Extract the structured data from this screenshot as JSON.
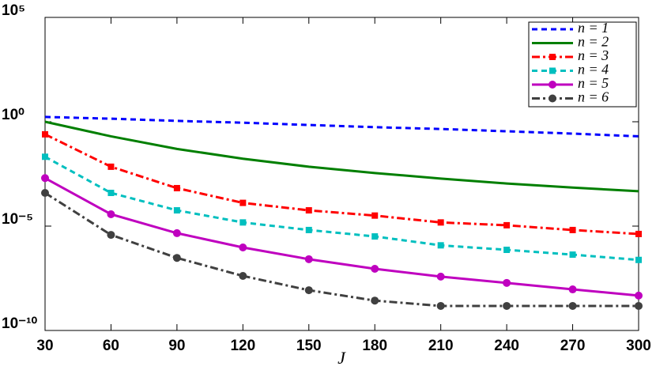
{
  "chart_data": {
    "type": "line",
    "x_label": "J",
    "x": [
      30,
      60,
      90,
      120,
      150,
      180,
      210,
      240,
      270,
      300
    ],
    "xlim": [
      30,
      300
    ],
    "xticks": [
      30,
      60,
      90,
      120,
      150,
      180,
      210,
      240,
      270,
      300
    ],
    "ylim": [
      1e-10,
      100000
    ],
    "y_scale": "log",
    "yticks": [
      {
        "value": 1e-10,
        "label": "10⁻¹⁰"
      },
      {
        "value": 1e-05,
        "label": "10⁻⁵"
      },
      {
        "value": 1,
        "label": "10⁰"
      },
      {
        "value": 100000,
        "label": "10⁵"
      }
    ],
    "grid": false,
    "legend": "upper right",
    "series": [
      {
        "name": "n = 1",
        "color": "#0000ff",
        "dash": "dashed",
        "marker": "none",
        "values": [
          1.7,
          1.4,
          1.1,
          0.9,
          0.7,
          0.55,
          0.45,
          0.35,
          0.27,
          0.2
        ]
      },
      {
        "name": "n = 2",
        "color": "#007f00",
        "dash": "solid",
        "marker": "none",
        "values": [
          1,
          0.2,
          0.05,
          0.017,
          0.007,
          0.0035,
          0.0019,
          0.0011,
          0.0007,
          0.00047
        ]
      },
      {
        "name": "n = 3",
        "color": "#ff0000",
        "dash": "dashdot",
        "marker": "square",
        "values": [
          0.25,
          0.007,
          0.00066,
          0.00013,
          5.7e-05,
          3.2e-05,
          1.5e-05,
          1.1e-05,
          6.5e-06,
          4.2e-06
        ]
      },
      {
        "name": "n = 4",
        "color": "#00bfbf",
        "dash": "dashed",
        "marker": "square",
        "values": [
          0.021,
          0.00039,
          5.7e-05,
          1.5e-05,
          6.5e-06,
          3.2e-06,
          1.2e-06,
          7.3e-07,
          4.3e-07,
          2.4e-07
        ]
      },
      {
        "name": "n = 5",
        "color": "#bf00bf",
        "dash": "solid",
        "marker": "circle",
        "values": [
          0.002,
          3.7e-05,
          4.6e-06,
          9.5e-07,
          2.6e-07,
          9e-08,
          3.8e-08,
          1.9e-08,
          9.3e-09,
          4.7e-09
        ]
      },
      {
        "name": "n = 6",
        "color": "#404040",
        "dash": "dashdot",
        "marker": "circle",
        "values": [
          0.00039,
          3.8e-06,
          3e-07,
          4.1e-08,
          8.5e-09,
          2.7e-09,
          1.5e-09,
          1.5e-09,
          1.5e-09,
          1.5e-09
        ]
      }
    ]
  }
}
